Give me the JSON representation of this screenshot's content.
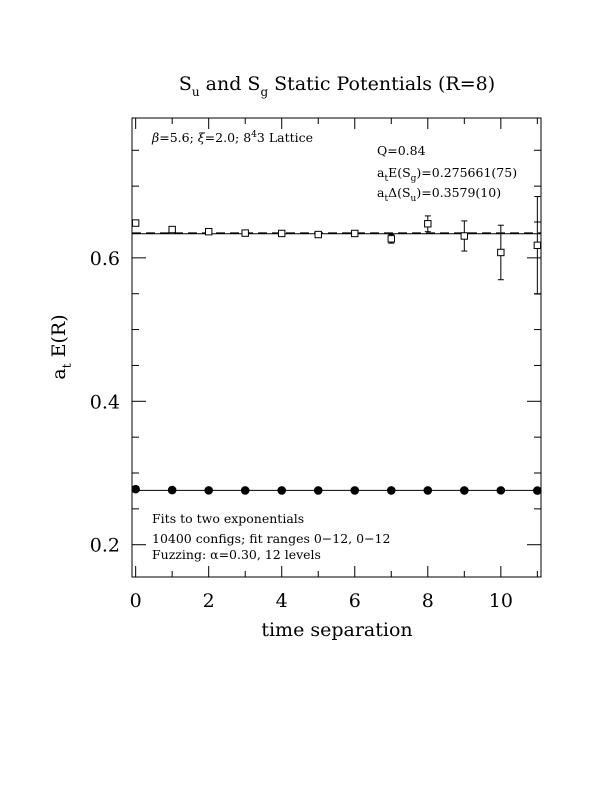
{
  "chart_data": {
    "type": "scatter",
    "title": {
      "a": "S",
      "a_sub": "u",
      "mid": " and S",
      "b_sub": "g",
      "rest": " Static Potentials (R=8)"
    },
    "xlabel": "time separation",
    "ylabel": {
      "main": "a",
      "sub": "t",
      "rest": " E(R)"
    },
    "xlim": [
      -0.1,
      11.1
    ],
    "ylim": [
      0.155,
      0.795
    ],
    "xticks": [
      0,
      2,
      4,
      6,
      8,
      10
    ],
    "xtick_labels": [
      "0",
      "2",
      "4",
      "6",
      "8",
      "10"
    ],
    "yticks": [
      0.2,
      0.4,
      0.6
    ],
    "ytick_labels": [
      "0.2",
      "0.4",
      "0.6"
    ],
    "annotations": {
      "lattice": {
        "beta": "β",
        "rest1": "=5.6; ",
        "xi": "ξ",
        "rest2": "=2.0; 8",
        "sup": "4",
        "rest3": "3",
        "rest4": " Lattice"
      },
      "q": "Q=0.84",
      "energy": {
        "pre": "a",
        "sub1": "t",
        "mid": "E(S",
        "sub2": "g",
        "post": ")=0.275661(75)"
      },
      "delta": {
        "pre": "a",
        "sub1": "t",
        "mid": "Δ(S",
        "sub2": "u",
        "post": ")=0.3579(10)"
      },
      "fits": "Fits to two exponentials",
      "configs": "10400 configs; fit ranges 0−12, 0−12",
      "fuzzing": "Fuzzing: α=0.30, 12 levels"
    },
    "fit_lines": [
      {
        "series": "S_g",
        "y": 0.2757,
        "style": "solid"
      },
      {
        "series": "S_u",
        "y": 0.6336,
        "style": "solid"
      },
      {
        "series": "S_u",
        "y": 0.6336,
        "style": "dashed"
      }
    ],
    "series": [
      {
        "marker": "filled-circle",
        "x": [
          0,
          1,
          2,
          3,
          4,
          5,
          6,
          7,
          8,
          9,
          10,
          11
        ],
        "y": [
          0.2775,
          0.2762,
          0.2758,
          0.2757,
          0.2757,
          0.2757,
          0.2757,
          0.2757,
          0.2757,
          0.2757,
          0.2758,
          0.2755
        ],
        "yerr": [
          0.0005,
          0.0004,
          0.0004,
          0.0004,
          0.0004,
          0.0004,
          0.0005,
          0.0005,
          0.0006,
          0.0007,
          0.0008,
          0.001
        ]
      },
      {
        "marker": "open-square",
        "x": [
          0,
          1,
          2,
          3,
          4,
          5,
          6,
          7,
          8,
          9,
          10,
          11
        ],
        "y": [
          0.6485,
          0.6395,
          0.6365,
          0.6345,
          0.634,
          0.6325,
          0.634,
          0.6265,
          0.6475,
          0.6305,
          0.6075,
          0.6175
        ],
        "yerr": [
          0.001,
          0.001,
          0.001,
          0.0015,
          0.002,
          0.0025,
          0.004,
          0.006,
          0.011,
          0.021,
          0.038,
          0.068
        ]
      }
    ]
  }
}
